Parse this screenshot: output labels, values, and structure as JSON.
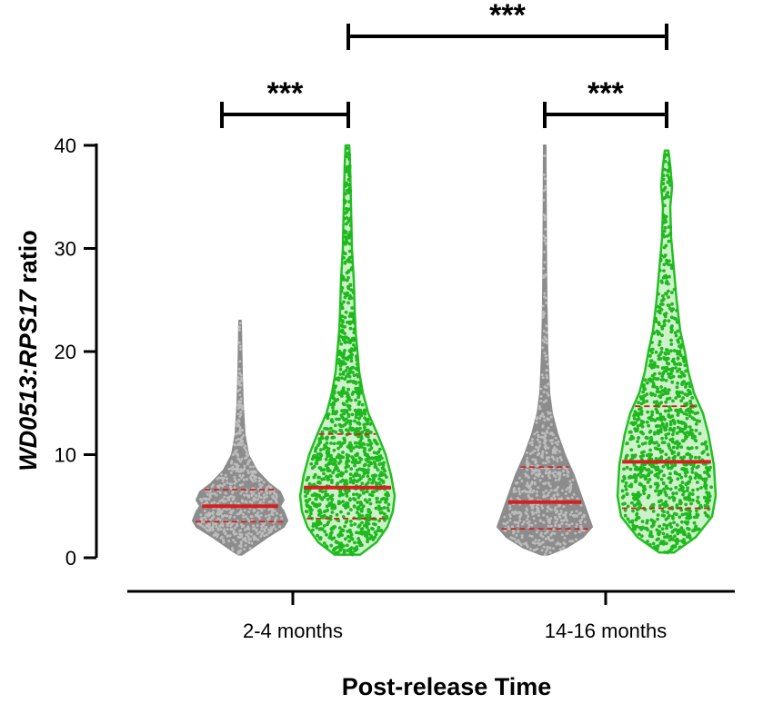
{
  "chart_data": {
    "type": "violin",
    "xlabel": "Post-release Time",
    "ylabel_italic": "WD0513:RPS17",
    "ylabel_suffix": " ratio",
    "ylim": [
      0,
      40
    ],
    "yticks": [
      "0",
      "10",
      "20",
      "30",
      "40"
    ],
    "categories": [
      "2-4 months",
      "14-16 months"
    ],
    "colors": {
      "grey": "#8c8c8c",
      "green": "#22c022",
      "median": "#d42020",
      "axis": "#000000"
    },
    "violins": [
      {
        "category": "2-4 months",
        "color": "grey",
        "min": 0.3,
        "max": 23,
        "q1": 3.5,
        "median": 5.0,
        "q3": 6.6,
        "profile": [
          [
            0.3,
            2
          ],
          [
            1,
            14
          ],
          [
            2,
            30
          ],
          [
            3,
            48
          ],
          [
            3.6,
            52
          ],
          [
            4.5,
            48
          ],
          [
            5,
            44
          ],
          [
            5.6,
            48
          ],
          [
            6.4,
            44
          ],
          [
            7.2,
            32
          ],
          [
            8.5,
            18
          ],
          [
            10,
            9
          ],
          [
            12,
            5
          ],
          [
            15,
            3
          ],
          [
            18,
            2
          ],
          [
            23,
            1
          ]
        ]
      },
      {
        "category": "2-4 months",
        "color": "green",
        "min": 0.3,
        "max": 40,
        "q1": 3.8,
        "median": 6.8,
        "q3": 12.0,
        "profile": [
          [
            0.3,
            14
          ],
          [
            1.5,
            32
          ],
          [
            3,
            44
          ],
          [
            4.5,
            50
          ],
          [
            6,
            52
          ],
          [
            8,
            48
          ],
          [
            10,
            42
          ],
          [
            12,
            33
          ],
          [
            14,
            23
          ],
          [
            16,
            17
          ],
          [
            18,
            13
          ],
          [
            20,
            11
          ],
          [
            22,
            9
          ],
          [
            24,
            8
          ],
          [
            27,
            7
          ],
          [
            30,
            5
          ],
          [
            34,
            4
          ],
          [
            38,
            3
          ],
          [
            40,
            2
          ]
        ]
      },
      {
        "category": "14-16 months",
        "color": "grey",
        "min": 0.3,
        "max": 40,
        "q1": 2.8,
        "median": 5.4,
        "q3": 8.8,
        "profile": [
          [
            0.3,
            4
          ],
          [
            1,
            24
          ],
          [
            2,
            42
          ],
          [
            3,
            52
          ],
          [
            4.5,
            46
          ],
          [
            6,
            40
          ],
          [
            8,
            32
          ],
          [
            10,
            22
          ],
          [
            12,
            14
          ],
          [
            14,
            8
          ],
          [
            16,
            5
          ],
          [
            20,
            3
          ],
          [
            25,
            2
          ],
          [
            30,
            1.5
          ],
          [
            40,
            1
          ]
        ]
      },
      {
        "category": "14-16 months",
        "color": "green",
        "min": 0.5,
        "max": 39.5,
        "q1": 4.8,
        "median": 9.3,
        "q3": 14.7,
        "profile": [
          [
            0.5,
            8
          ],
          [
            2,
            32
          ],
          [
            4,
            50
          ],
          [
            6,
            54
          ],
          [
            9,
            52
          ],
          [
            12,
            46
          ],
          [
            14,
            40
          ],
          [
            16,
            30
          ],
          [
            18,
            24
          ],
          [
            20,
            20
          ],
          [
            22,
            15
          ],
          [
            25,
            11
          ],
          [
            28,
            8
          ],
          [
            31,
            5
          ],
          [
            34,
            4
          ],
          [
            36,
            6
          ],
          [
            38,
            4
          ],
          [
            39.5,
            2
          ]
        ]
      }
    ],
    "significance": [
      {
        "label": "***",
        "between": [
          "2-4 months grey",
          "2-4 months green"
        ]
      },
      {
        "label": "***",
        "between": [
          "14-16 months grey",
          "14-16 months green"
        ]
      },
      {
        "label": "***",
        "between": [
          "2-4 months green",
          "14-16 months green"
        ]
      }
    ]
  }
}
